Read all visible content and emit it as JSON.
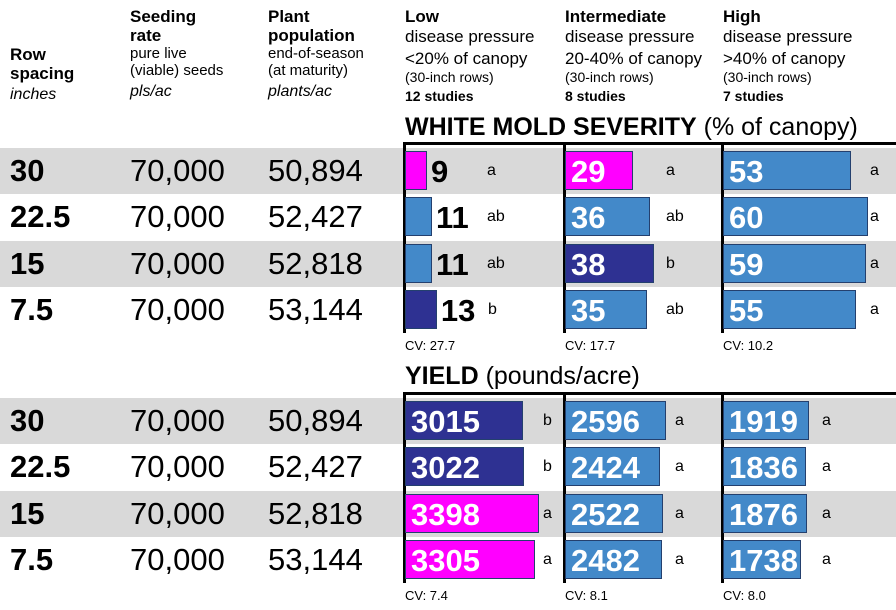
{
  "header": {
    "row_spacing": {
      "title": "Row spacing",
      "unit": "inches"
    },
    "seeding_rate": {
      "title_1": "Seeding",
      "title_2": "rate",
      "desc_1": "pure live",
      "desc_2": "(viable) seeds",
      "unit": "pls/ac"
    },
    "plant_population": {
      "title_1": "Plant",
      "title_2": "population",
      "desc_1": "end-of-season",
      "desc_2": "(at maturity)",
      "unit": "plants/ac"
    },
    "panels": [
      {
        "name": "Low",
        "line2": "disease pressure",
        "line3": "<20% of canopy",
        "line4": "(30-inch rows)",
        "studies": "12 studies"
      },
      {
        "name": "Intermediate",
        "line2": "disease pressure",
        "line3": "20-40% of canopy",
        "line4": "(30-inch rows)",
        "studies": "8 studies"
      },
      {
        "name": "High",
        "line2": "disease pressure",
        "line3": ">40% of canopy",
        "line4": "(30-inch rows)",
        "studies": "7 studies"
      }
    ]
  },
  "colors": {
    "magenta": "#ff00ff",
    "blue": "#4389c9",
    "navy": "#2e3192",
    "row_shade": "#d9d9d9"
  },
  "chart_data": [
    {
      "type": "bar",
      "title": "WHITE MOLD SEVERITY",
      "title_unit": "(% of canopy)",
      "rows": [
        {
          "row_spacing": "30",
          "seeding_rate": "70,000",
          "plant_population": "50,894"
        },
        {
          "row_spacing": "22.5",
          "seeding_rate": "70,000",
          "plant_population": "52,427"
        },
        {
          "row_spacing": "15",
          "seeding_rate": "70,000",
          "plant_population": "52,818"
        },
        {
          "row_spacing": "7.5",
          "seeding_rate": "70,000",
          "plant_population": "53,144"
        }
      ],
      "series": [
        {
          "panel": "Low",
          "values": [
            9,
            11,
            11,
            13
          ],
          "letters": [
            "a",
            "ab",
            "ab",
            "b"
          ],
          "colors": [
            "magenta",
            "blue",
            "blue",
            "navy"
          ],
          "cv": "CV: 27.7"
        },
        {
          "panel": "Intermediate",
          "values": [
            29,
            36,
            38,
            35
          ],
          "letters": [
            "a",
            "ab",
            "b",
            "ab"
          ],
          "colors": [
            "magenta",
            "blue",
            "navy",
            "blue"
          ],
          "cv": "CV: 17.7"
        },
        {
          "panel": "High",
          "values": [
            53,
            60,
            59,
            55
          ],
          "letters": [
            "a",
            "a",
            "a",
            "a"
          ],
          "colors": [
            "blue",
            "blue",
            "blue",
            "blue"
          ],
          "cv": "CV: 10.2"
        }
      ]
    },
    {
      "type": "bar",
      "title": "YIELD",
      "title_unit": "(pounds/acre)",
      "rows": [
        {
          "row_spacing": "30",
          "seeding_rate": "70,000",
          "plant_population": "50,894"
        },
        {
          "row_spacing": "22.5",
          "seeding_rate": "70,000",
          "plant_population": "52,427"
        },
        {
          "row_spacing": "15",
          "seeding_rate": "70,000",
          "plant_population": "52,818"
        },
        {
          "row_spacing": "7.5",
          "seeding_rate": "70,000",
          "plant_population": "53,144"
        }
      ],
      "series": [
        {
          "panel": "Low",
          "values": [
            3015,
            3022,
            3398,
            3305
          ],
          "letters": [
            "b",
            "b",
            "a",
            "a"
          ],
          "colors": [
            "navy",
            "navy",
            "magenta",
            "magenta"
          ],
          "cv": "CV: 7.4"
        },
        {
          "panel": "Intermediate",
          "values": [
            2596,
            2424,
            2522,
            2482
          ],
          "letters": [
            "a",
            "a",
            "a",
            "a"
          ],
          "colors": [
            "blue",
            "blue",
            "blue",
            "blue"
          ],
          "cv": "CV: 8.1"
        },
        {
          "panel": "High",
          "values": [
            1919,
            1836,
            1876,
            1738
          ],
          "letters": [
            "a",
            "a",
            "a",
            "a"
          ],
          "colors": [
            "blue",
            "blue",
            "blue",
            "blue"
          ],
          "cv": "CV: 8.0"
        }
      ]
    }
  ]
}
